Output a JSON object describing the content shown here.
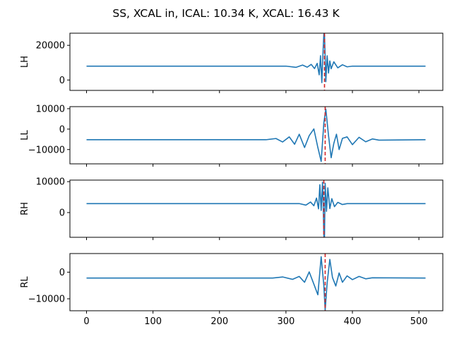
{
  "figure": {
    "title": "SS, XCAL in, ICAL: 10.34 K, XCAL: 16.43 K",
    "line_color": "#1f77b4",
    "marker_color": "#d62728"
  },
  "chart_data": [
    {
      "type": "line",
      "ylabel": "LH",
      "xlim": [
        -25,
        536
      ],
      "ylim": [
        -6000,
        27000
      ],
      "yticks": [
        0,
        20000
      ],
      "ytick_labels": [
        "0",
        "20000"
      ],
      "xticks": [
        0,
        100,
        200,
        300,
        400,
        500
      ],
      "xtick_labels": [],
      "baseline": 8000,
      "peak_index": 357,
      "series": [
        {
          "x": [
            0,
            300,
            315,
            325,
            332,
            338,
            343,
            347,
            350,
            352,
            354,
            356,
            357,
            358,
            360,
            362,
            364,
            366,
            368,
            372,
            378,
            385,
            392,
            400,
            510
          ],
          "y": [
            8000,
            8000,
            7300,
            8600,
            7400,
            9000,
            6600,
            9600,
            3000,
            14000,
            -1500,
            18000,
            26500,
            26000,
            -1000,
            14000,
            4000,
            11000,
            6500,
            10500,
            7000,
            8800,
            7600,
            8000,
            8000
          ]
        }
      ],
      "vline_x": 358
    },
    {
      "type": "line",
      "ylabel": "LL",
      "xlim": [
        -25,
        536
      ],
      "ylim": [
        -17000,
        11000
      ],
      "yticks": [
        -10000,
        0,
        10000
      ],
      "ytick_labels": [
        "−10000",
        "0",
        "10000"
      ],
      "xticks": [
        0,
        100,
        200,
        300,
        400,
        500
      ],
      "xtick_labels": [],
      "baseline": -5200,
      "peak_index": 357,
      "series": [
        {
          "x": [
            0,
            270,
            285,
            295,
            305,
            313,
            320,
            328,
            335,
            342,
            348,
            353,
            357,
            360,
            364,
            368,
            372,
            376,
            380,
            385,
            392,
            400,
            410,
            420,
            430,
            440,
            510
          ],
          "y": [
            -5200,
            -5200,
            -4600,
            -6300,
            -3800,
            -7400,
            -2500,
            -9000,
            -3200,
            100,
            -9000,
            -15800,
            3000,
            9800,
            -3000,
            -14000,
            -7000,
            -2500,
            -10000,
            -4500,
            -3800,
            -7600,
            -4000,
            -6200,
            -4800,
            -5400,
            -5200
          ]
        }
      ],
      "vline_x": 359
    },
    {
      "type": "line",
      "ylabel": "RH",
      "xlim": [
        -25,
        536
      ],
      "ylim": [
        -8000,
        10500
      ],
      "yticks": [
        0,
        10000
      ],
      "ytick_labels": [
        "0",
        "10000"
      ],
      "xticks": [
        0,
        100,
        200,
        300,
        400,
        500
      ],
      "xtick_labels": [],
      "baseline": 2900,
      "peak_index": 357,
      "series": [
        {
          "x": [
            0,
            320,
            330,
            337,
            342,
            346,
            349,
            351,
            353,
            355,
            356,
            357,
            358,
            359,
            361,
            363,
            366,
            369,
            373,
            378,
            385,
            392,
            510
          ],
          "y": [
            2900,
            2900,
            2400,
            3400,
            2200,
            4700,
            1200,
            9000,
            700,
            9800,
            3000,
            -7500,
            -8000,
            9500,
            400,
            8000,
            1300,
            4500,
            1900,
            3300,
            2600,
            2900,
            2900
          ]
        }
      ],
      "vline_x": 357
    },
    {
      "type": "line",
      "ylabel": "RL",
      "xlim": [
        -25,
        536
      ],
      "ylim": [
        -14500,
        7000
      ],
      "yticks": [
        -10000,
        0
      ],
      "ytick_labels": [
        "−10000",
        "0"
      ],
      "xticks": [
        0,
        100,
        200,
        300,
        400,
        500
      ],
      "xtick_labels": [
        0,
        100,
        200,
        300,
        400,
        500
      ],
      "baseline": -2200,
      "peak_index": 357,
      "series": [
        {
          "x": [
            0,
            280,
            295,
            310,
            320,
            328,
            335,
            342,
            348,
            353,
            357,
            359,
            362,
            366,
            370,
            375,
            380,
            385,
            392,
            400,
            410,
            420,
            430,
            510
          ],
          "y": [
            -2200,
            -2200,
            -1800,
            -2700,
            -1600,
            -3800,
            100,
            -4500,
            -8500,
            5800,
            -5000,
            -14300,
            -4000,
            4800,
            -2000,
            -5200,
            -300,
            -3800,
            -1400,
            -2800,
            -1600,
            -2500,
            -2100,
            -2200
          ]
        }
      ],
      "vline_x": 359
    }
  ]
}
